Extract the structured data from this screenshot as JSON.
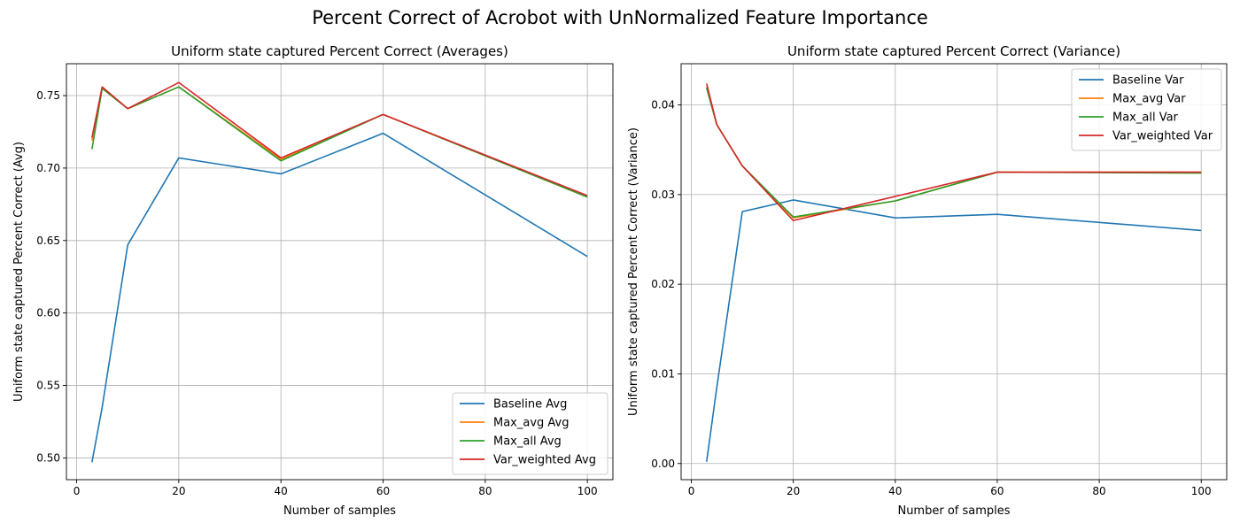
{
  "suptitle": "Percent Correct of Acrobot with UnNormalized Feature Importance",
  "chart_data": [
    {
      "type": "line",
      "title": "Uniform state captured Percent Correct (Averages)",
      "xlabel": "Number of samples",
      "ylabel": "Uniform state captured Percent Correct (Avg)",
      "xlim": [
        -2,
        105
      ],
      "ylim": [
        0.485,
        0.772
      ],
      "xticks": [
        0,
        20,
        40,
        60,
        80,
        100
      ],
      "yticks": [
        0.5,
        0.55,
        0.6,
        0.65,
        0.7,
        0.75
      ],
      "ytick_format": 2,
      "grid": true,
      "legend_position": "lower right",
      "x": [
        3,
        5,
        10,
        20,
        40,
        60,
        100
      ],
      "series": [
        {
          "name": "Baseline Avg",
          "color": "#1f77b4",
          "values": [
            0.497,
            0.535,
            0.647,
            0.707,
            0.696,
            0.724,
            0.639
          ]
        },
        {
          "name": "Max_avg Avg",
          "color": "#ff7f0e",
          "values": [
            0.719,
            0.755,
            0.741,
            0.756,
            0.706,
            0.737,
            0.68
          ]
        },
        {
          "name": "Max_all Avg",
          "color": "#2ca02c",
          "values": [
            0.713,
            0.755,
            0.741,
            0.756,
            0.705,
            0.737,
            0.68
          ]
        },
        {
          "name": "Var_weighted Avg",
          "color": "#d62728",
          "values": [
            0.721,
            0.756,
            0.741,
            0.759,
            0.707,
            0.737,
            0.681
          ]
        }
      ]
    },
    {
      "type": "line",
      "title": "Uniform state captured Percent Correct (Variance)",
      "xlabel": "Number of samples",
      "ylabel": "Uniform state captured Percent Correct (Variance)",
      "xlim": [
        -2,
        105
      ],
      "ylim": [
        -0.0018,
        0.0446
      ],
      "xticks": [
        0,
        20,
        40,
        60,
        80,
        100
      ],
      "yticks": [
        0.0,
        0.01,
        0.02,
        0.03,
        0.04
      ],
      "ytick_format": 2,
      "grid": true,
      "legend_position": "upper right",
      "x": [
        3,
        5,
        10,
        20,
        40,
        60,
        100
      ],
      "series": [
        {
          "name": "Baseline Var",
          "color": "#1f77b4",
          "values": [
            0.0002,
            0.0085,
            0.0281,
            0.0294,
            0.0274,
            0.0278,
            0.026
          ]
        },
        {
          "name": "Max_avg Var",
          "color": "#ff7f0e",
          "values": [
            0.042,
            0.0378,
            0.0332,
            0.0274,
            0.0293,
            0.0325,
            0.0325
          ]
        },
        {
          "name": "Max_all Var",
          "color": "#2ca02c",
          "values": [
            0.0419,
            0.0378,
            0.0332,
            0.0275,
            0.0293,
            0.0325,
            0.0324
          ]
        },
        {
          "name": "Var_weighted Var",
          "color": "#d62728",
          "values": [
            0.0424,
            0.0378,
            0.0332,
            0.0271,
            0.0298,
            0.0325,
            0.0325
          ]
        }
      ]
    }
  ]
}
